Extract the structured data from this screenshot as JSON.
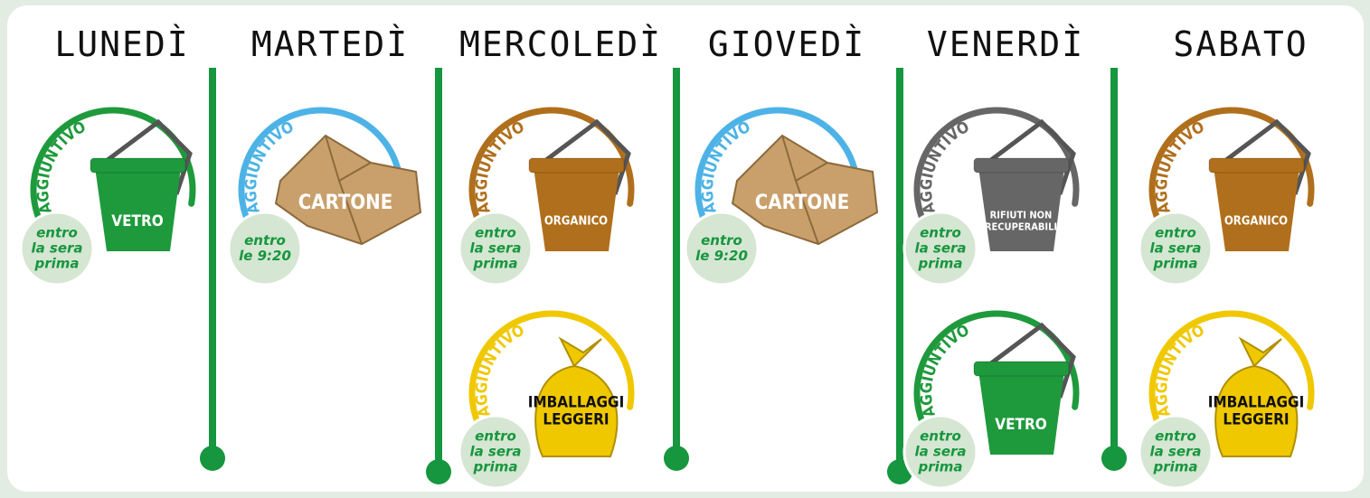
{
  "days": [
    {
      "name": "LUNEDÌ",
      "items": [
        {
          "tag": "AGGIUNTIVO",
          "label": [
            "VETRO"
          ],
          "note": [
            "entro",
            "la sera",
            "prima"
          ],
          "color": "#1e9a3c",
          "icon": "bin"
        }
      ]
    },
    {
      "name": "MARTEDÌ",
      "items": [
        {
          "tag": "AGGIUNTIVO",
          "label": [
            "CARTONE"
          ],
          "note": [
            "entro",
            "le 9:20"
          ],
          "color": "#4db3e6",
          "icon": "box"
        }
      ]
    },
    {
      "name": "MERCOLEDÌ",
      "items": [
        {
          "tag": "AGGIUNTIVO",
          "label": [
            "ORGANICO"
          ],
          "note": [
            "entro",
            "la sera",
            "prima"
          ],
          "color": "#b06f1c",
          "icon": "bin"
        },
        {
          "tag": "AGGIUNTIVO",
          "label": [
            "IMBALLAGGI",
            "LEGGERI"
          ],
          "note": [
            "entro",
            "la sera",
            "prima"
          ],
          "color": "#f0c800",
          "icon": "bag"
        }
      ]
    },
    {
      "name": "GIOVEDÌ",
      "items": [
        {
          "tag": "AGGIUNTIVO",
          "label": [
            "CARTONE"
          ],
          "note": [
            "entro",
            "le 9:20"
          ],
          "color": "#4db3e6",
          "icon": "box"
        }
      ]
    },
    {
      "name": "VENERDÌ",
      "items": [
        {
          "tag": "AGGIUNTIVO",
          "label": [
            "RIFIUTI NON",
            "RECUPERABILI"
          ],
          "note": [
            "entro",
            "la sera",
            "prima"
          ],
          "color": "#666666",
          "icon": "bin"
        },
        {
          "tag": "AGGIUNTIVO",
          "label": [
            "VETRO"
          ],
          "note": [
            "entro",
            "la sera",
            "prima"
          ],
          "color": "#1e9a3c",
          "icon": "bin"
        }
      ]
    },
    {
      "name": "SABATO",
      "items": [
        {
          "tag": "AGGIUNTIVO",
          "label": [
            "ORGANICO"
          ],
          "note": [
            "entro",
            "la sera",
            "prima"
          ],
          "color": "#b06f1c",
          "icon": "bin"
        },
        {
          "tag": "AGGIUNTIVO",
          "label": [
            "IMBALLAGGI",
            "LEGGERI"
          ],
          "note": [
            "entro",
            "la sera",
            "prima"
          ],
          "color": "#f0c800",
          "icon": "bag"
        }
      ]
    }
  ]
}
